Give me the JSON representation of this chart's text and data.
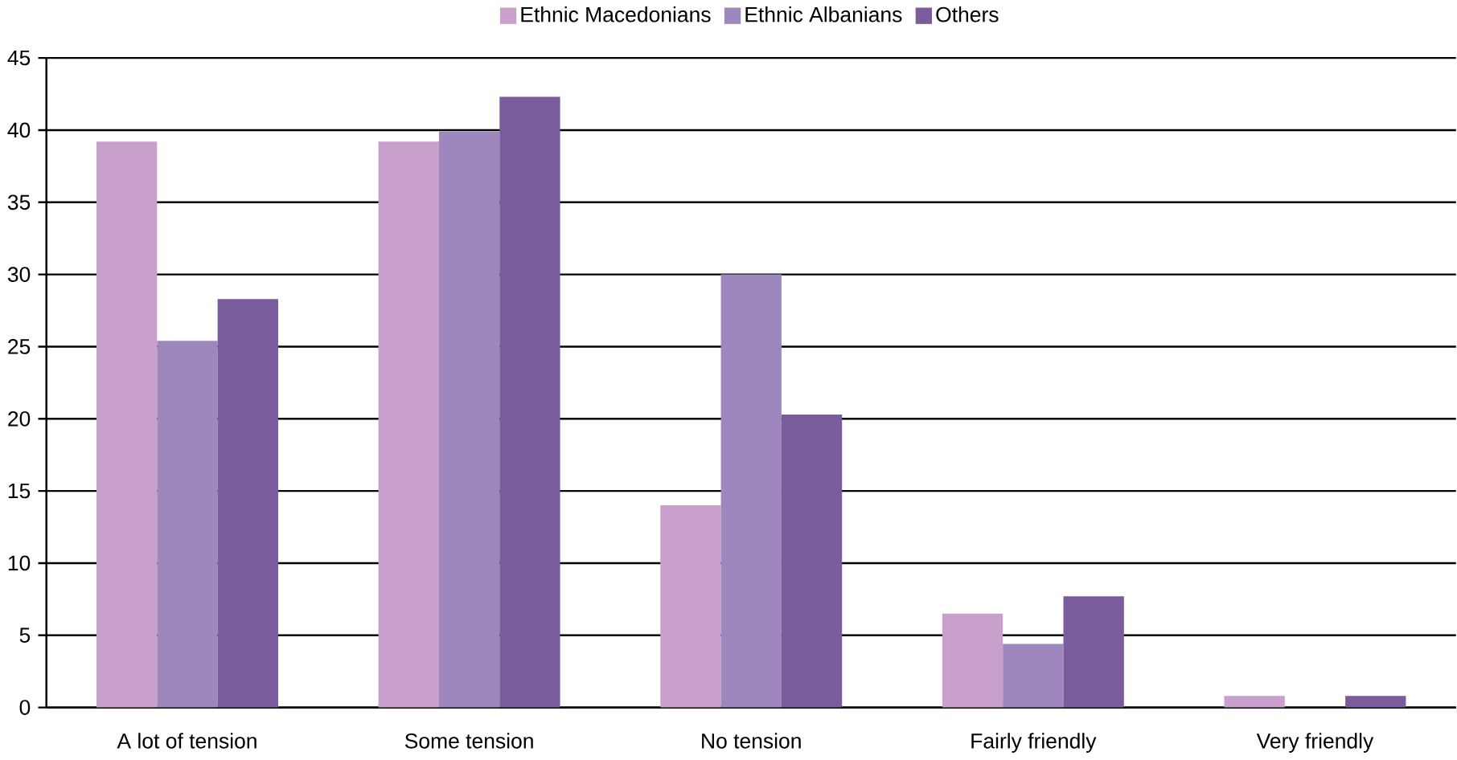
{
  "chart_data": {
    "type": "bar",
    "categories": [
      "A lot of tension",
      "Some tension",
      "No tension",
      "Fairly friendly",
      "Very friendly"
    ],
    "series": [
      {
        "name": "Ethnic Macedonians",
        "color": "#c8a0cb",
        "values": [
          39.2,
          39.2,
          14.0,
          6.5,
          0.8
        ]
      },
      {
        "name": "Ethnic Albanians",
        "color": "#9e87bd",
        "values": [
          25.4,
          39.9,
          30.0,
          4.4,
          0
        ]
      },
      {
        "name": "Others",
        "color": "#7a5c9d",
        "values": [
          28.3,
          42.3,
          20.3,
          7.7,
          0.8
        ]
      }
    ],
    "ylim": [
      0,
      45
    ],
    "yticks": [
      0,
      5,
      10,
      15,
      20,
      25,
      30,
      35,
      40,
      45
    ],
    "grid": "y",
    "legend": "top"
  }
}
